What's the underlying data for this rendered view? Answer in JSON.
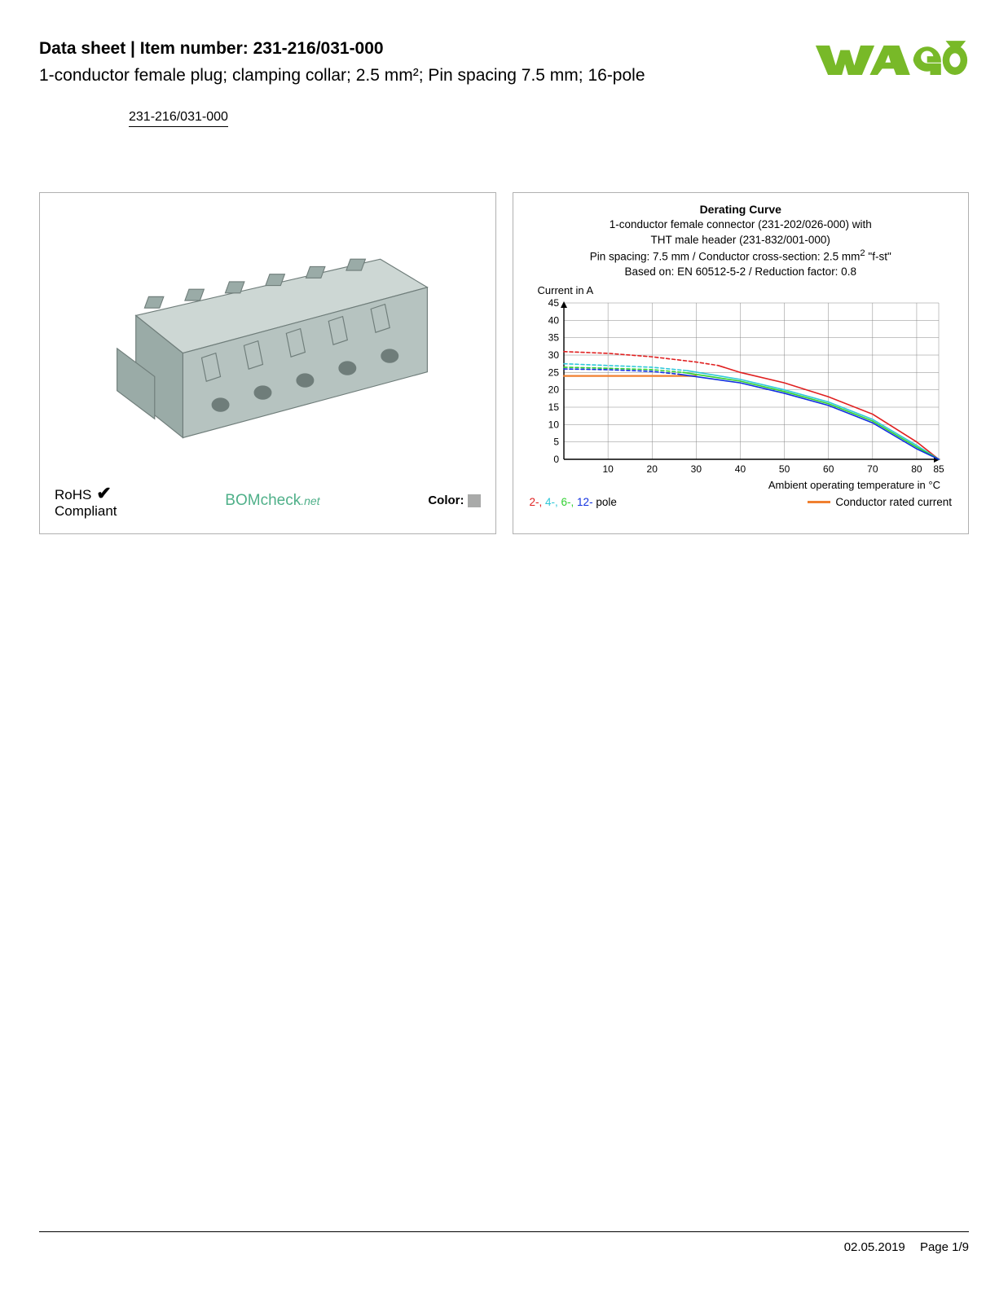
{
  "header": {
    "title_prefix": "Data sheet",
    "title_sep": "  |  ",
    "title_item_label": "Item number:",
    "item_number": "231-216/031-000",
    "subtitle": "1-conductor female plug; clamping collar; 2.5 mm²; Pin spacing 7.5 mm; 16-pole",
    "link_text": "231-216/031-000"
  },
  "logo": {
    "name": "wago-logo",
    "fill": "#78b928"
  },
  "left_panel": {
    "rohs_line1": "RoHS",
    "rohs_line2": "Compliant",
    "bomcheck_main": "BOMcheck",
    "bomcheck_suffix": ".net",
    "color_label": "Color:",
    "swatch_color": "#a9aaa9",
    "connector_fill": "#b6c3c0",
    "connector_shade": "#9aaba7",
    "connector_light": "#cdd7d4"
  },
  "chart": {
    "title": "Derating Curve",
    "sub1": "1-conductor female connector (231-202/026-000) with",
    "sub2": "THT male header (231-832/001-000)",
    "sub3_a": "Pin spacing: 7.5 mm / Conductor cross-section: 2.5 mm",
    "sub3_sup": "2",
    "sub3_b": " \"f-st\"",
    "sub4": "Based on: EN 60512-5-2 / Reduction factor: 0.8",
    "y_axis_label": "Current in A",
    "x_axis_label": "Ambient operating temperature in °C",
    "xlim": [
      0,
      85
    ],
    "ylim": [
      0,
      45
    ],
    "xticks": [
      10,
      20,
      30,
      40,
      50,
      60,
      70,
      80,
      85
    ],
    "yticks": [
      0,
      5,
      10,
      15,
      20,
      25,
      30,
      35,
      40,
      45
    ],
    "grid_color": "#888888",
    "axis_color": "#000000",
    "background": "#ffffff",
    "series": {
      "rated": {
        "color": "#f08030",
        "stroke_width": 2.2,
        "dash": "none",
        "points": [
          [
            0,
            24
          ],
          [
            30,
            24
          ]
        ]
      },
      "pole2_dash": {
        "color": "#e02020",
        "stroke_width": 1.6,
        "dash": "4,3",
        "points": [
          [
            0,
            31
          ],
          [
            10,
            30.5
          ],
          [
            20,
            29.5
          ],
          [
            30,
            28
          ],
          [
            35,
            27
          ]
        ]
      },
      "pole2_solid": {
        "color": "#e02020",
        "stroke_width": 1.6,
        "dash": "none",
        "points": [
          [
            35,
            27
          ],
          [
            40,
            25
          ],
          [
            50,
            22
          ],
          [
            60,
            18
          ],
          [
            70,
            13
          ],
          [
            80,
            5
          ],
          [
            85,
            0
          ]
        ]
      },
      "pole4_dash": {
        "color": "#30c8d8",
        "stroke_width": 1.6,
        "dash": "4,3",
        "points": [
          [
            0,
            27.5
          ],
          [
            10,
            27
          ],
          [
            20,
            26.5
          ],
          [
            28,
            25.5
          ]
        ]
      },
      "pole4_solid": {
        "color": "#30c8d8",
        "stroke_width": 1.6,
        "dash": "none",
        "points": [
          [
            28,
            25.5
          ],
          [
            40,
            23
          ],
          [
            50,
            20
          ],
          [
            60,
            16.5
          ],
          [
            70,
            11.5
          ],
          [
            80,
            4
          ],
          [
            85,
            0
          ]
        ]
      },
      "pole6_dash": {
        "color": "#30d030",
        "stroke_width": 1.6,
        "dash": "4,3",
        "points": [
          [
            0,
            26.5
          ],
          [
            10,
            26.2
          ],
          [
            20,
            25.8
          ],
          [
            27,
            25
          ]
        ]
      },
      "pole6_solid": {
        "color": "#30d030",
        "stroke_width": 1.6,
        "dash": "none",
        "points": [
          [
            27,
            25
          ],
          [
            40,
            22.5
          ],
          [
            50,
            19.5
          ],
          [
            60,
            16
          ],
          [
            70,
            11
          ],
          [
            80,
            3.5
          ],
          [
            85,
            0
          ]
        ]
      },
      "pole12_dash": {
        "color": "#1030e0",
        "stroke_width": 1.6,
        "dash": "4,3",
        "points": [
          [
            0,
            26
          ],
          [
            10,
            25.8
          ],
          [
            20,
            25.3
          ],
          [
            26,
            24.5
          ]
        ]
      },
      "pole12_solid": {
        "color": "#1030e0",
        "stroke_width": 1.6,
        "dash": "none",
        "points": [
          [
            26,
            24.5
          ],
          [
            40,
            22
          ],
          [
            50,
            19
          ],
          [
            60,
            15.5
          ],
          [
            70,
            10.5
          ],
          [
            80,
            3
          ],
          [
            85,
            0
          ]
        ]
      }
    },
    "legend": {
      "pole2": {
        "label": "2-,",
        "color": "#e02020"
      },
      "pole4": {
        "label": " 4-,",
        "color": "#30c8d8"
      },
      "pole6": {
        "label": " 6-,",
        "color": "#30d030"
      },
      "pole12": {
        "label": " 12-",
        "color": "#1030e0"
      },
      "pole_suffix": " pole",
      "rated_label": "Conductor rated current"
    }
  },
  "footer": {
    "date": "02.05.2019",
    "page": "Page 1/9"
  }
}
